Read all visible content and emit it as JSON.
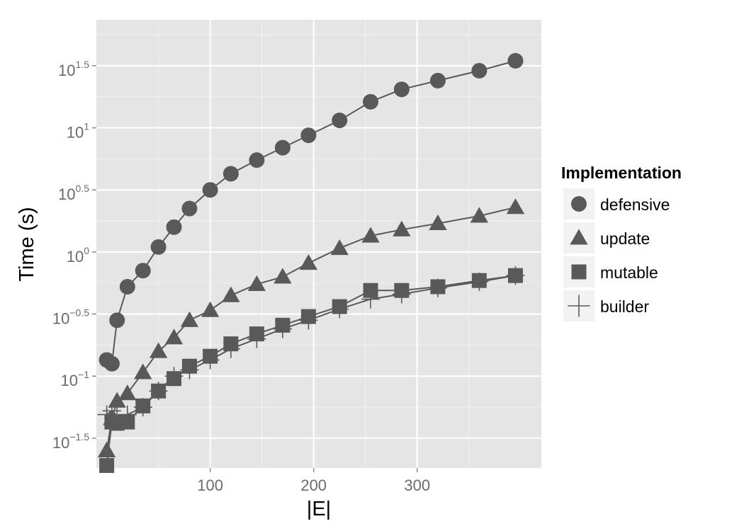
{
  "chart_data": {
    "type": "line",
    "xlabel": "|E|",
    "ylabel": "Time (s)",
    "x_ticks": [
      100,
      200,
      300
    ],
    "x_tick_labels": [
      "100",
      "200",
      "300"
    ],
    "xlim": [
      -10,
      420
    ],
    "y_scale": "log10",
    "y_ticks": [
      -1.5,
      -1,
      -0.5,
      0,
      0.5,
      1,
      1.5
    ],
    "y_tick_labels": [
      {
        "base": "10",
        "exp": "−1.5"
      },
      {
        "base": "10",
        "exp": "−1"
      },
      {
        "base": "10",
        "exp": "−0.5"
      },
      {
        "base": "10",
        "exp": "0"
      },
      {
        "base": "10",
        "exp": "0.5"
      },
      {
        "base": "10",
        "exp": "1"
      },
      {
        "base": "10",
        "exp": "1.5"
      }
    ],
    "ylim": [
      -1.74,
      1.87
    ],
    "grid": true,
    "panel_background": "#e5e5e5",
    "series_color": "#595959",
    "legend": {
      "title": "Implementation",
      "position": "right"
    },
    "series": [
      {
        "name": "defensive",
        "marker": "circle",
        "x": [
          0,
          5,
          10,
          20,
          35,
          50,
          65,
          80,
          100,
          120,
          145,
          170,
          195,
          225,
          255,
          285,
          320,
          360,
          395
        ],
        "y": [
          -0.87,
          -0.9,
          -0.55,
          -0.28,
          -0.15,
          0.04,
          0.2,
          0.35,
          0.5,
          0.63,
          0.74,
          0.84,
          0.94,
          1.06,
          1.21,
          1.31,
          1.38,
          1.46,
          1.54
        ]
      },
      {
        "name": "update",
        "marker": "triangle",
        "x": [
          0,
          5,
          10,
          20,
          35,
          50,
          65,
          80,
          100,
          120,
          145,
          170,
          195,
          225,
          255,
          285,
          320,
          360,
          395
        ],
        "y": [
          -1.6,
          -1.34,
          -1.2,
          -1.14,
          -0.97,
          -0.8,
          -0.69,
          -0.55,
          -0.47,
          -0.35,
          -0.26,
          -0.2,
          -0.09,
          0.03,
          0.13,
          0.18,
          0.23,
          0.29,
          0.36
        ]
      },
      {
        "name": "mutable",
        "marker": "square",
        "x": [
          0,
          5,
          10,
          20,
          35,
          50,
          65,
          80,
          100,
          120,
          145,
          170,
          195,
          225,
          255,
          285,
          320,
          360,
          395
        ],
        "y": [
          -1.72,
          -1.37,
          -1.38,
          -1.37,
          -1.24,
          -1.12,
          -1.02,
          -0.92,
          -0.84,
          -0.74,
          -0.66,
          -0.59,
          -0.52,
          -0.44,
          -0.31,
          -0.31,
          -0.28,
          -0.23,
          -0.19
        ]
      },
      {
        "name": "builder",
        "marker": "plus",
        "x": [
          0,
          5,
          10,
          20,
          35,
          50,
          65,
          80,
          100,
          120,
          145,
          170,
          195,
          225,
          255,
          285,
          320,
          360,
          395
        ],
        "y": [
          -1.31,
          -1.28,
          -1.32,
          -1.31,
          -1.25,
          -1.12,
          -1.0,
          -0.95,
          -0.87,
          -0.78,
          -0.7,
          -0.62,
          -0.55,
          -0.46,
          -0.38,
          -0.34,
          -0.29,
          -0.24,
          -0.19
        ]
      }
    ]
  }
}
